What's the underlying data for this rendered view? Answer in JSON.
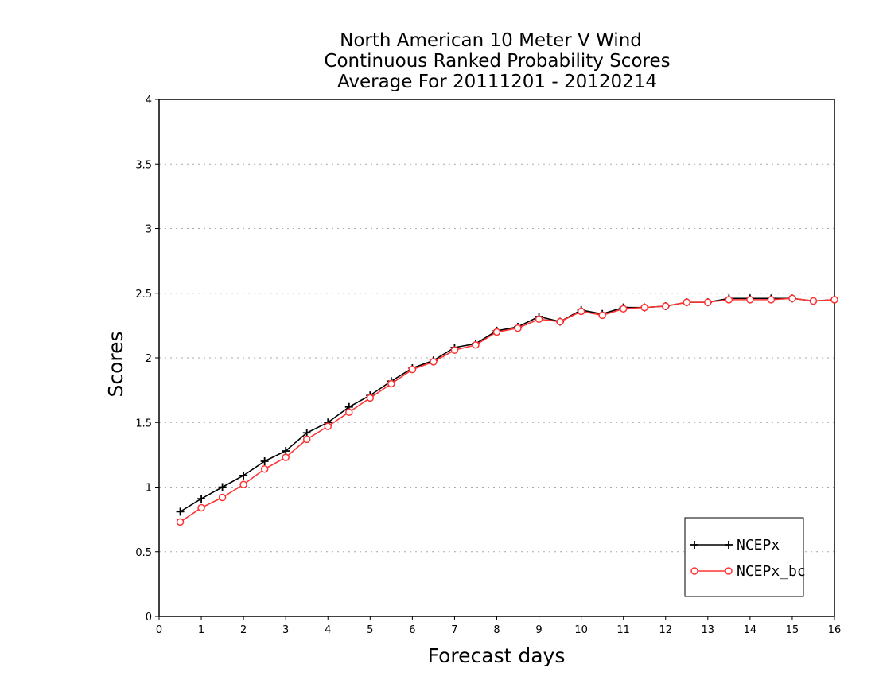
{
  "chart_data": {
    "type": "line",
    "title_lines": [
      "North American 10 Meter V Wind",
      "Continuous Ranked Probability Scores",
      "Average For 20111201 - 20120214"
    ],
    "xlabel": "Forecast days",
    "ylabel": "Scores",
    "xlim": [
      0,
      16
    ],
    "ylim": [
      0,
      4
    ],
    "x_ticks": [
      0,
      1,
      2,
      3,
      4,
      5,
      6,
      7,
      8,
      9,
      10,
      11,
      12,
      13,
      14,
      15,
      16
    ],
    "y_ticks": [
      0,
      0.5,
      1,
      1.5,
      2,
      2.5,
      3,
      3.5,
      4
    ],
    "y_tick_labels": [
      "0",
      "0.5",
      "1",
      "1.5",
      "2",
      "2.5",
      "3",
      "3.5",
      "4"
    ],
    "grid": "horizontal dotted",
    "legend_position": "bottom-right",
    "x": [
      0.5,
      1.0,
      1.5,
      2.0,
      2.5,
      3.0,
      3.5,
      4.0,
      4.5,
      5.0,
      5.5,
      6.0,
      6.5,
      7.0,
      7.5,
      8.0,
      8.5,
      9.0,
      9.5,
      10.0,
      10.5,
      11.0,
      11.5,
      12.0,
      12.5,
      13.0,
      13.5,
      14.0,
      14.5,
      15.0,
      15.5,
      16.0
    ],
    "series": [
      {
        "name": "NCEPx",
        "color": "#000000",
        "marker": "plus",
        "values": [
          0.81,
          0.91,
          1.0,
          1.09,
          1.2,
          1.28,
          1.42,
          1.5,
          1.62,
          1.71,
          1.82,
          1.92,
          1.98,
          2.08,
          2.11,
          2.21,
          2.24,
          2.32,
          2.28,
          2.37,
          2.34,
          2.39,
          2.39,
          2.4,
          2.43,
          2.43,
          2.46,
          2.46,
          2.46,
          2.46,
          2.44,
          2.45
        ]
      },
      {
        "name": "NCEPx_bc",
        "color": "#ff3333",
        "marker": "circle",
        "values": [
          0.73,
          0.84,
          0.92,
          1.02,
          1.14,
          1.23,
          1.37,
          1.47,
          1.58,
          1.69,
          1.8,
          1.91,
          1.97,
          2.06,
          2.1,
          2.2,
          2.23,
          2.3,
          2.28,
          2.36,
          2.33,
          2.38,
          2.39,
          2.4,
          2.43,
          2.43,
          2.45,
          2.45,
          2.45,
          2.46,
          2.44,
          2.45
        ]
      }
    ]
  }
}
